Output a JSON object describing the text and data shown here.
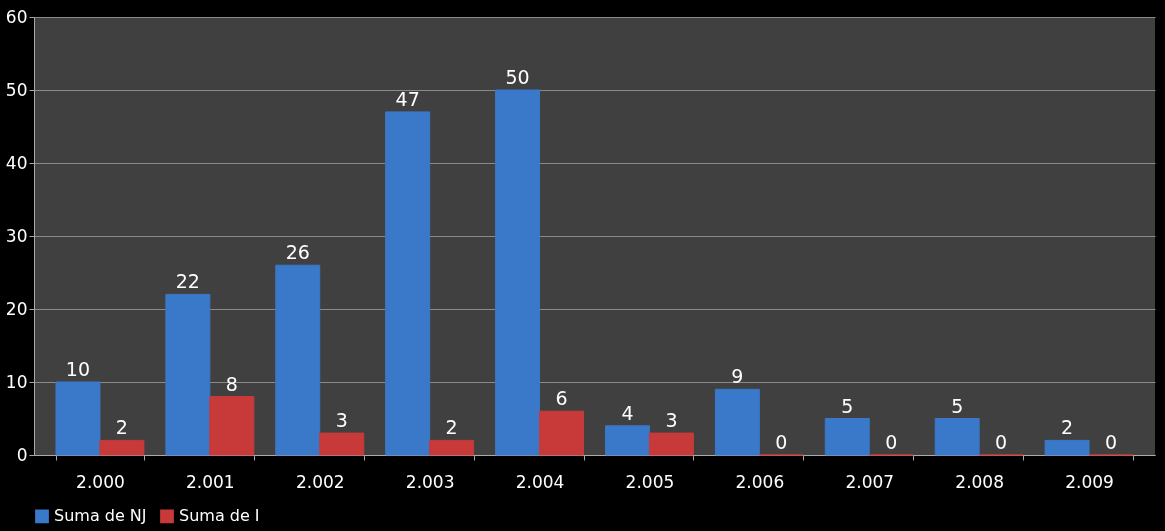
{
  "chart_data": {
    "type": "bar",
    "categories": [
      "2.000",
      "2.001",
      "2.002",
      "2.003",
      "2.004",
      "2.005",
      "2.006",
      "2.007",
      "2.008",
      "2.009"
    ],
    "series": [
      {
        "name": "Suma de NJ",
        "color": "#3a78c9",
        "values": [
          10,
          22,
          26,
          47,
          50,
          4,
          9,
          5,
          5,
          2
        ]
      },
      {
        "name": "Suma de I",
        "color": "#c83a3a",
        "values": [
          2,
          8,
          3,
          2,
          6,
          3,
          0,
          0,
          0,
          0
        ]
      }
    ],
    "ylim": [
      0,
      60
    ],
    "yticks": [
      0,
      10,
      20,
      30,
      40,
      50,
      60
    ],
    "grid": "y",
    "legend": "bottom",
    "data_labels": true
  }
}
